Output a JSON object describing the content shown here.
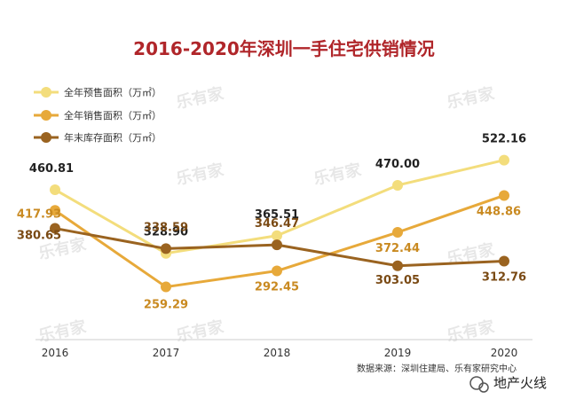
{
  "chart_data": {
    "type": "line",
    "title": "2016-2020年深圳一手住宅供销情况",
    "categories": [
      "2016",
      "2017",
      "2018",
      "2019",
      "2020"
    ],
    "series": [
      {
        "name": "全年预售面积（万㎡）",
        "color": "#f3dd7c",
        "values": [
          460.81,
          328.9,
          365.51,
          470.0,
          522.16
        ]
      },
      {
        "name": "全年销售面积（万㎡）",
        "color": "#e7a93a",
        "values": [
          417.93,
          259.29,
          292.45,
          372.44,
          448.86
        ]
      },
      {
        "name": "年末库存面积（万㎡）",
        "color": "#9a6320",
        "values": [
          380.65,
          338.59,
          346.47,
          303.05,
          312.76
        ]
      }
    ],
    "ylim": [
      150,
      560
    ],
    "source": "数据来源：深圳住建局、乐有家研究中心",
    "watermark": "乐有家"
  },
  "footer": {
    "account": "地产火线"
  }
}
